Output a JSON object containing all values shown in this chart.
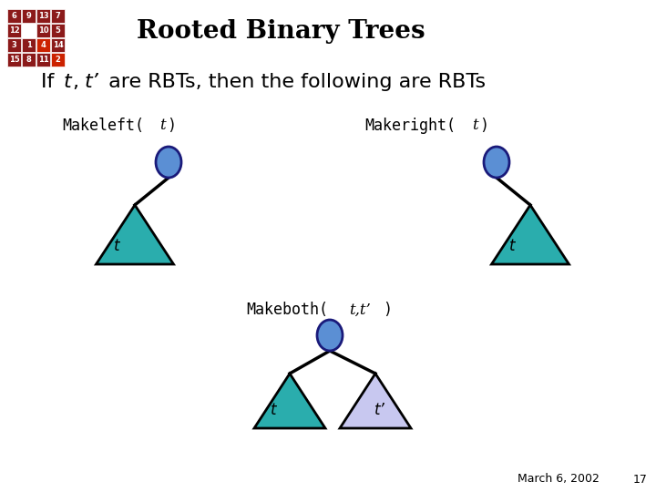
{
  "title": "Rooted Binary Trees",
  "node_color": "#5b8fd4",
  "node_edge_color": "#1a1a7a",
  "teal_tri_color": "#2aadad",
  "lavender_tri_color": "#c8c8f0",
  "line_color": "#000000",
  "date_text": "March 6, 2002",
  "page_num": "17",
  "grid_values": [
    [
      "6",
      "9",
      "13",
      "7"
    ],
    [
      "12",
      "",
      "10",
      "5"
    ],
    [
      "3",
      "1",
      "4",
      "14"
    ],
    [
      "15",
      "8",
      "11",
      "2"
    ]
  ],
  "grid_bg": [
    [
      "#8b1a1a",
      "#8b1a1a",
      "#8b1a1a",
      "#8b1a1a"
    ],
    [
      "#8b1a1a",
      "#ffffff",
      "#8b1a1a",
      "#8b1a1a"
    ],
    [
      "#8b1a1a",
      "#8b1a1a",
      "#cc2200",
      "#8b1a1a"
    ],
    [
      "#8b1a1a",
      "#8b1a1a",
      "#8b1a1a",
      "#cc2200"
    ]
  ]
}
